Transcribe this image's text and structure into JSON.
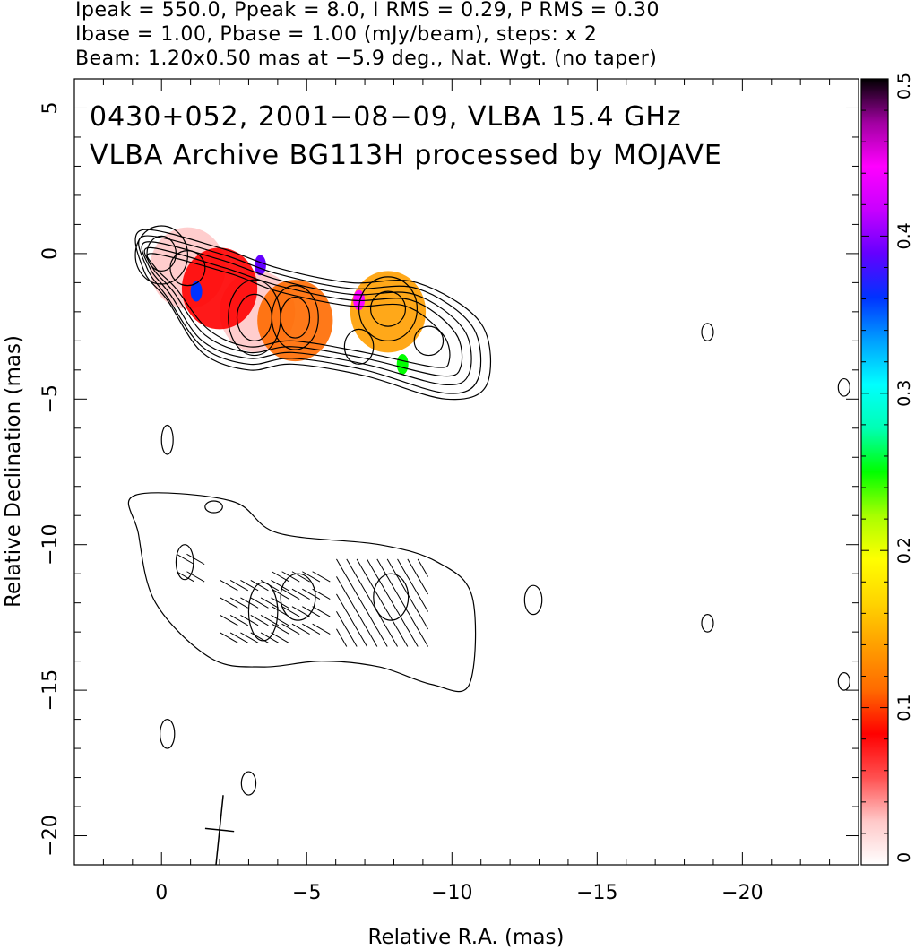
{
  "header": {
    "line1": "Ipeak = 550.0, Ppeak = 8.0, I RMS = 0.29, P RMS = 0.30",
    "line2": "Ibase = 1.00, Pbase = 1.00 (mJy/beam), steps: x 2",
    "line3": "Beam: 1.20x0.50 mas at −5.9 deg., Nat. Wgt. (no taper)"
  },
  "annotations": {
    "line1": "0430+052, 2001−08−09, VLBA 15.4 GHz",
    "line2": "VLBA Archive BG113H processed by MOJAVE"
  },
  "chart_data": {
    "type": "heatmap",
    "title": "",
    "xlabel": "Relative R.A. (mas)",
    "ylabel": "Relative Declination (mas)",
    "xlim": [
      3.0,
      -24.0
    ],
    "ylim": [
      -21.0,
      6.0
    ],
    "xticks": [
      0,
      -5,
      -10,
      -15,
      -20
    ],
    "xtick_labels": [
      "0",
      "−5",
      "−10",
      "−15",
      "−20"
    ],
    "yticks": [
      5,
      0,
      -5,
      -10,
      -15,
      -20
    ],
    "ytick_labels": [
      "5",
      "0",
      "−5",
      "−10",
      "−15",
      "−20"
    ],
    "colorbar": {
      "range": [
        0,
        0.5
      ],
      "ticks": [
        0,
        0.1,
        0.2,
        0.3,
        0.4,
        0.5
      ],
      "tick_labels": [
        "0",
        "0.1",
        "0.2",
        "0.3",
        "0.4",
        "0.5"
      ],
      "colors": [
        "#ffffff",
        "#ffc8c8",
        "#ff5050",
        "#ff0000",
        "#ff6a00",
        "#ff9e00",
        "#ffd400",
        "#ffff00",
        "#a8ff00",
        "#00ff00",
        "#00ffb4",
        "#00ffff",
        "#00a0ff",
        "#0032ff",
        "#6400ff",
        "#c800ff",
        "#ff00ff",
        "#a000a0",
        "#000000"
      ]
    },
    "fractional_polarization_blobs": [
      {
        "ra": -0.9,
        "dec": -0.5,
        "value": 0.03
      },
      {
        "ra": -3.3,
        "dec": -2.0,
        "value": 0.03
      },
      {
        "ra": -2.0,
        "dec": -1.2,
        "value": 0.07
      },
      {
        "ra": -4.6,
        "dec": -2.3,
        "value": 0.12
      },
      {
        "ra": -7.8,
        "dec": -2.0,
        "value": 0.13
      }
    ],
    "contour_levels_mJy_per_beam": [
      1,
      2,
      4,
      8,
      16,
      32,
      64,
      128,
      256,
      512
    ],
    "peak_intensity_mJy_per_beam": 550.0,
    "peak_polarization_mJy_per_beam": 8.0,
    "beam": {
      "major_mas": 1.2,
      "minor_mas": 0.5,
      "pa_deg": -5.9
    },
    "plot_offset_lower_panel_mas": -12.0
  }
}
